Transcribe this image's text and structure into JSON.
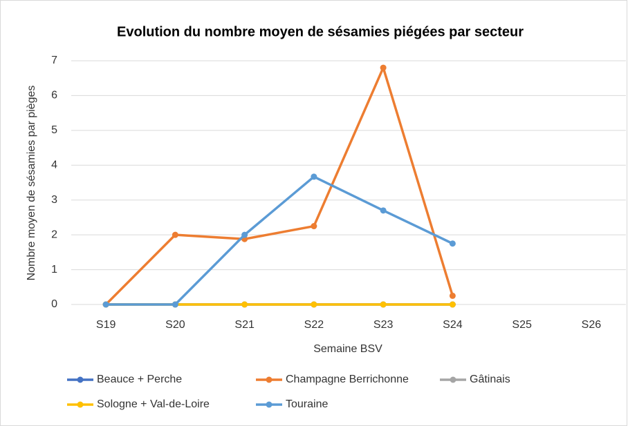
{
  "chart_data": {
    "type": "line",
    "title": "Evolution du nombre moyen de sésamies piégées par secteur",
    "x_label": "Semaine BSV",
    "y_label": "Nombre moyen de sésamies par pièges",
    "categories": [
      "S19",
      "S20",
      "S21",
      "S22",
      "S23",
      "S24",
      "S25",
      "S26"
    ],
    "series": [
      {
        "name": "Beauce + Perche",
        "color": "#4472c4",
        "values": [
          0,
          0,
          0,
          0,
          0,
          0,
          null,
          null
        ]
      },
      {
        "name": "Champagne Berrichonne",
        "color": "#ed7d31",
        "values": [
          0,
          2.0,
          1.88,
          2.25,
          6.8,
          0.25,
          null,
          null
        ]
      },
      {
        "name": "Gâtinais",
        "color": "#a5a5a5",
        "values": [
          0,
          0,
          0,
          0,
          0,
          0,
          null,
          null
        ]
      },
      {
        "name": "Sologne + Val-de-Loire",
        "color": "#ffc000",
        "values": [
          0,
          0,
          0,
          0,
          0,
          0,
          null,
          null
        ]
      },
      {
        "name": "Touraine",
        "color": "#5b9bd5",
        "values": [
          0,
          0,
          2.0,
          3.67,
          2.7,
          1.75,
          null,
          null
        ]
      }
    ],
    "ylim": [
      0,
      7
    ],
    "yticks": [
      0,
      1,
      2,
      3,
      4,
      5,
      6,
      7
    ],
    "grid": true,
    "legend": "bottom"
  }
}
